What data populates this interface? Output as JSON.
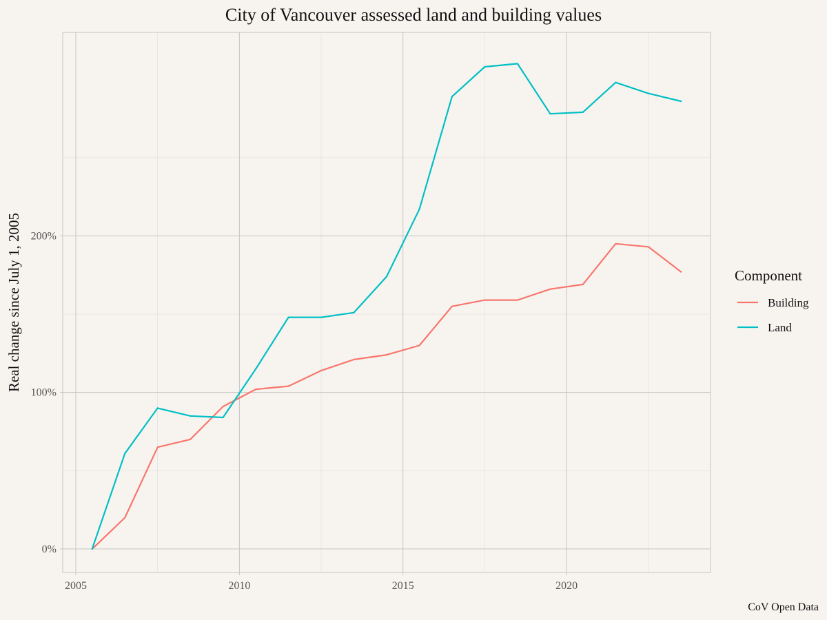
{
  "chart_data": {
    "type": "line",
    "title": "City of Vancouver assessed land and building values",
    "xlabel": "",
    "ylabel": "Real change since July 1, 2005",
    "caption": "CoV Open Data",
    "xlim": [
      2004.6,
      2024.4
    ],
    "ylim": [
      -0.15,
      3.3
    ],
    "x_ticks": [
      2005,
      2010,
      2015,
      2020
    ],
    "x_tick_labels": [
      "2005",
      "2010",
      "2015",
      "2020"
    ],
    "y_ticks": [
      0,
      1,
      2
    ],
    "y_tick_labels": [
      "0%",
      "100%",
      "200%"
    ],
    "grid": true,
    "legend": {
      "title": "Component",
      "position": "right"
    },
    "series": [
      {
        "name": "Building",
        "color": "#f8766d",
        "x": [
          2005.5,
          2006.5,
          2007.5,
          2008.5,
          2009.5,
          2010.5,
          2011.5,
          2012.5,
          2013.5,
          2014.5,
          2015.5,
          2016.5,
          2017.5,
          2018.5,
          2019.5,
          2020.5,
          2021.5,
          2022.5,
          2023.5
        ],
        "values": [
          0.0,
          0.2,
          0.65,
          0.7,
          0.91,
          1.02,
          1.04,
          1.14,
          1.21,
          1.24,
          1.3,
          1.55,
          1.59,
          1.59,
          1.66,
          1.69,
          1.95,
          1.93,
          1.77
        ]
      },
      {
        "name": "Land",
        "color": "#00bfc4",
        "x": [
          2005.5,
          2006.5,
          2007.5,
          2008.5,
          2009.5,
          2010.5,
          2011.5,
          2012.5,
          2013.5,
          2014.5,
          2015.5,
          2016.5,
          2017.5,
          2018.5,
          2019.5,
          2020.5,
          2021.5,
          2022.5,
          2023.5
        ],
        "values": [
          0.0,
          0.61,
          0.9,
          0.85,
          0.84,
          1.15,
          1.48,
          1.48,
          1.51,
          1.74,
          2.17,
          2.89,
          3.08,
          3.1,
          2.78,
          2.79,
          2.98,
          2.91,
          2.86
        ]
      }
    ]
  }
}
